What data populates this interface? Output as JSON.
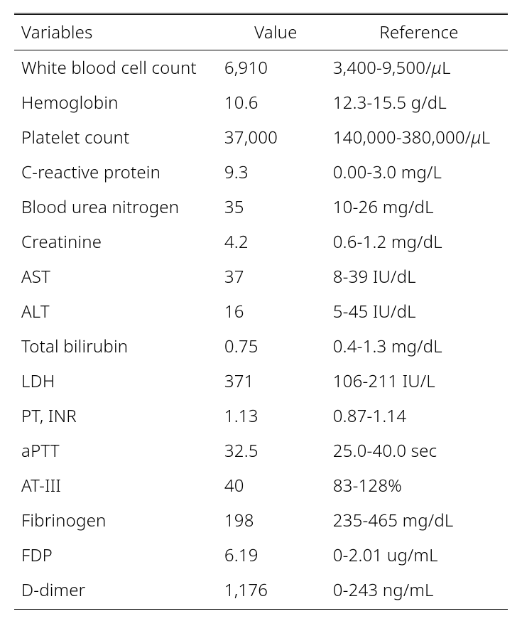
{
  "table": {
    "type": "table",
    "background_color": "#ffffff",
    "text_color": "#000000",
    "border_color": "#000000",
    "font_size_pt": 18,
    "font_weight": "300",
    "column_widths_pct": [
      42,
      22,
      36
    ],
    "header_top_border": "double",
    "header_bottom_border": "solid",
    "footer_bottom_border": "solid",
    "columns": [
      {
        "key": "variable",
        "label": "Variables",
        "align": "left"
      },
      {
        "key": "value",
        "label": "Value",
        "align": "center"
      },
      {
        "key": "reference",
        "label": "Reference",
        "align": "center"
      }
    ],
    "rows": [
      {
        "variable": "White blood cell count",
        "value": "6,910",
        "reference": "3,400-9,500/μL"
      },
      {
        "variable": "Hemoglobin",
        "value": "10.6",
        "reference": "12.3-15.5 g/dL"
      },
      {
        "variable": "Platelet count",
        "value": "37,000",
        "reference": "140,000-380,000/μL"
      },
      {
        "variable": "C-reactive protein",
        "value": "9.3",
        "reference": "0.00-3.0 mg/L"
      },
      {
        "variable": "Blood urea nitrogen",
        "value": "35",
        "reference": "10-26 mg/dL"
      },
      {
        "variable": "Creatinine",
        "value": "4.2",
        "reference": "0.6-1.2 mg/dL"
      },
      {
        "variable": "AST",
        "value": "37",
        "reference": "8-39 IU/dL"
      },
      {
        "variable": "ALT",
        "value": "16",
        "reference": "5-45 IU/dL"
      },
      {
        "variable": "Total bilirubin",
        "value": "0.75",
        "reference": "0.4-1.3 mg/dL"
      },
      {
        "variable": "LDH",
        "value": "371",
        "reference": "106-211 IU/L"
      },
      {
        "variable": "PT, INR",
        "value": "1.13",
        "reference": "0.87-1.14"
      },
      {
        "variable": "aPTT",
        "value": "32.5",
        "reference": "25.0-40.0 sec"
      },
      {
        "variable": "AT-III",
        "value": "40",
        "reference": "83-128%"
      },
      {
        "variable": "Fibrinogen",
        "value": "198",
        "reference": "235-465 mg/dL"
      },
      {
        "variable": "FDP",
        "value": "6.19",
        "reference": "0-2.01 ug/mL"
      },
      {
        "variable": "D-dimer",
        "value": "1,176",
        "reference": "0-243 ng/mL"
      }
    ]
  }
}
